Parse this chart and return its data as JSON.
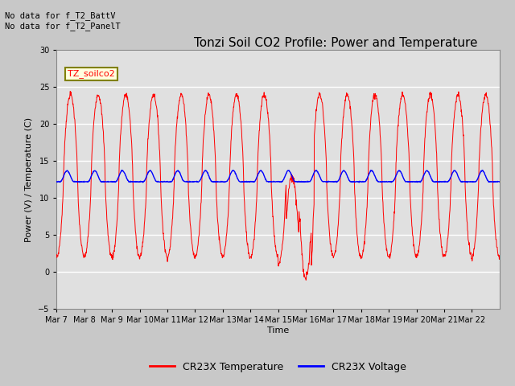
{
  "title": "Tonzi Soil CO2 Profile: Power and Temperature",
  "ylabel": "Power (V) / Temperature (C)",
  "xlabel": "Time",
  "ylim": [
    -5,
    30
  ],
  "yticks": [
    -5,
    0,
    5,
    10,
    15,
    20,
    25,
    30
  ],
  "x_labels": [
    "Mar 7",
    "Mar 8",
    "Mar 9",
    "Mar 10",
    "Mar 11",
    "Mar 12",
    "Mar 13",
    "Mar 14",
    "Mar 15",
    "Mar 16",
    "Mar 17",
    "Mar 18",
    "Mar 19",
    "Mar 20",
    "Mar 21",
    "Mar 22"
  ],
  "annotation_text": "No data for f_T2_BattV\nNo data for f_T2_PanelT",
  "legend_label1": "CR23X Temperature",
  "legend_label2": "CR23X Voltage",
  "inset_label": "TZ_soilco2",
  "fig_facecolor": "#c8c8c8",
  "ax_facecolor": "#e0e0e0",
  "grid_color": "white",
  "title_fontsize": 11,
  "tick_fontsize": 7,
  "label_fontsize": 8,
  "legend_fontsize": 9
}
